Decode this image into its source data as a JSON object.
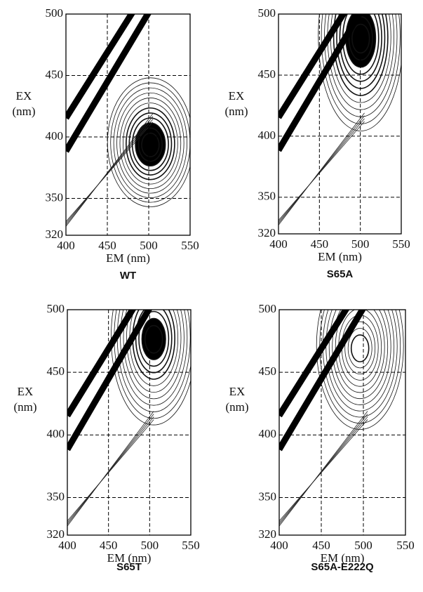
{
  "chart_data": [
    {
      "type": "contour",
      "title": "WT",
      "xlabel": "EM (nm)",
      "ylabel": [
        "EX",
        "(nm)"
      ],
      "xlim": [
        400,
        550
      ],
      "xticks": [
        400,
        450,
        500,
        550
      ],
      "ylim": [
        320,
        500
      ],
      "yticks": [
        320,
        350,
        400,
        450,
        500
      ],
      "grid": true
    },
    {
      "type": "contour",
      "title": "S65A",
      "xlabel": "EM (nm)",
      "ylabel": [
        "EX",
        "(nm)"
      ],
      "xlim": [
        400,
        550
      ],
      "xticks": [
        400,
        450,
        500,
        550
      ],
      "ylim": [
        320,
        500
      ],
      "yticks": [
        320,
        350,
        400,
        450,
        500
      ],
      "grid": true
    },
    {
      "type": "contour",
      "title": "S65T",
      "xlabel": "EM (nm)",
      "ylabel": [
        "EX",
        "(nm)"
      ],
      "xlim": [
        400,
        550
      ],
      "xticks": [
        400,
        450,
        500,
        550
      ],
      "ylim": [
        320,
        500
      ],
      "yticks": [
        320,
        350,
        400,
        450,
        500
      ],
      "grid": true
    },
    {
      "type": "contour",
      "title": "S65A-E222Q",
      "xlabel": "EM (nm)",
      "ylabel": [
        "EX",
        "(nm)"
      ],
      "xlim": [
        400,
        550
      ],
      "xticks": [
        400,
        450,
        500,
        550
      ],
      "ylim": [
        320,
        500
      ],
      "yticks": [
        320,
        350,
        400,
        450,
        500
      ],
      "grid": true
    }
  ]
}
